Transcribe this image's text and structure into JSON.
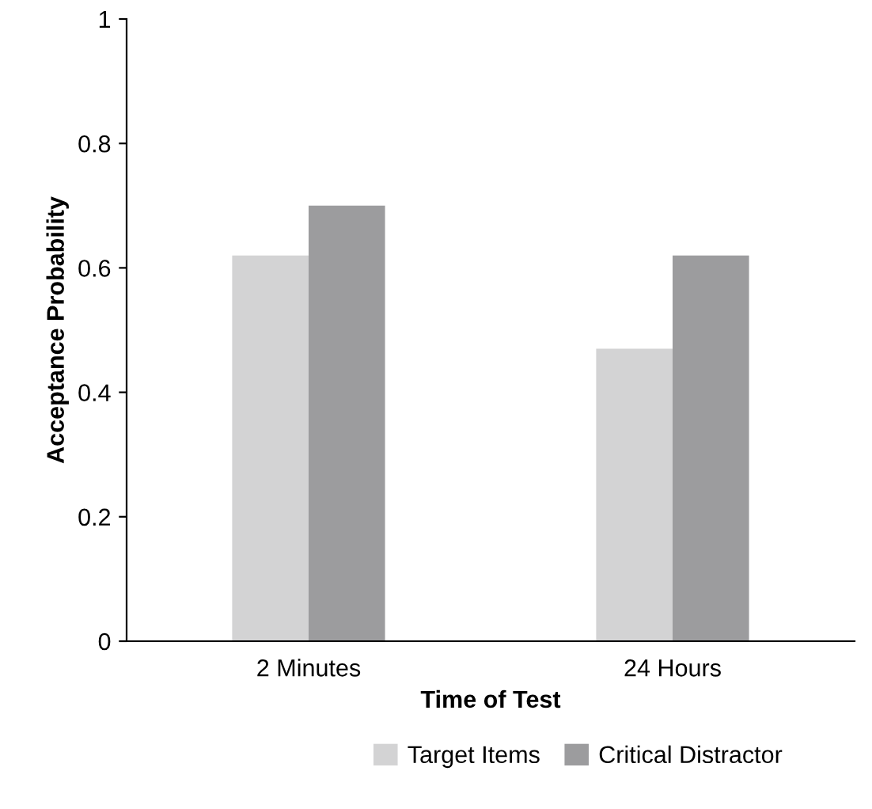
{
  "chart_data": {
    "type": "bar",
    "xlabel": "Time of Test",
    "ylabel": "Acceptance Probability",
    "categories": [
      "2 Minutes",
      "24 Hours"
    ],
    "series": [
      {
        "name": "Target Items",
        "color": "#d3d3d4",
        "values": [
          0.62,
          0.47
        ]
      },
      {
        "name": "Critical Distractor",
        "color": "#9c9c9e",
        "values": [
          0.7,
          0.62
        ]
      }
    ],
    "ylim": [
      0,
      1
    ],
    "yticks": [
      0,
      0.2,
      0.4,
      0.6,
      0.8,
      1
    ],
    "grid": false,
    "legend": "bottom"
  }
}
